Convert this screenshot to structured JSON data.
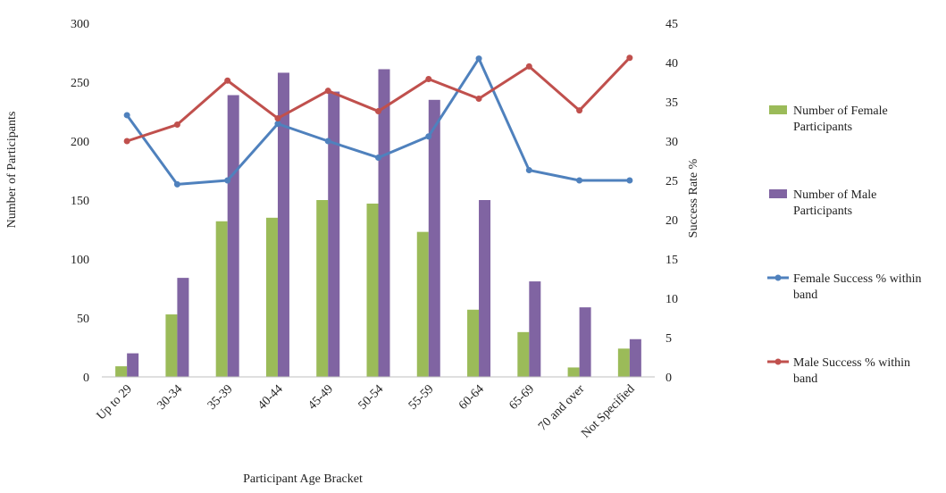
{
  "chart_data": {
    "type": "bar",
    "title": "",
    "xlabel": "Participant Age Bracket",
    "ylabel": "Number of Participants",
    "y2label": "Success Rate %",
    "ylim": [
      0,
      300
    ],
    "y2lim": [
      0,
      45
    ],
    "yticks": [
      0,
      50,
      100,
      150,
      200,
      250,
      300
    ],
    "y2ticks": [
      0,
      5,
      10,
      15,
      20,
      25,
      30,
      35,
      40,
      45
    ],
    "grid": false,
    "legend_position": "right",
    "categories": [
      "Up to 29",
      "30-34",
      "35-39",
      "40-44",
      "45-49",
      "50-54",
      "55-59",
      "60-64",
      "65-69",
      "70 and over",
      "Not Specified"
    ],
    "series": [
      {
        "name": "Number of Female Participants",
        "kind": "bar",
        "axis": "left",
        "color": "#9bbb59",
        "values": [
          9,
          53,
          132,
          135,
          150,
          147,
          123,
          57,
          38,
          8,
          24
        ]
      },
      {
        "name": "Number of Male Participants",
        "kind": "bar",
        "axis": "left",
        "color": "#8064a2",
        "values": [
          20,
          84,
          239,
          258,
          242,
          261,
          235,
          150,
          81,
          59,
          32
        ]
      },
      {
        "name": "Female Success % within band",
        "kind": "line",
        "axis": "right",
        "color": "#4f81bd",
        "values": [
          33.3,
          24.5,
          25.0,
          32.2,
          30.0,
          27.9,
          30.6,
          40.5,
          26.3,
          25.0,
          25.0
        ]
      },
      {
        "name": "Male Success % within band",
        "kind": "line",
        "axis": "right",
        "color": "#c0504d",
        "values": [
          30.0,
          32.1,
          37.7,
          32.9,
          36.4,
          33.8,
          37.9,
          35.4,
          39.5,
          33.9,
          40.6
        ]
      }
    ]
  }
}
